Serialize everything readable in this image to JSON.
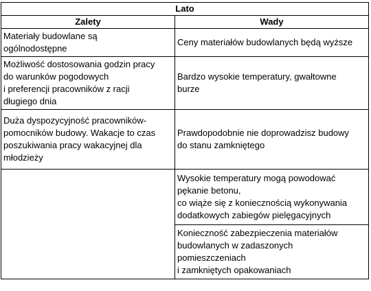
{
  "table": {
    "title": "Lato",
    "headers": {
      "left": "Zalety",
      "right": "Wady"
    },
    "rows": [
      {
        "left": "Materiały budowlane są\nogólnodostępne",
        "right": "Ceny materiałów budowlanych będą wyższe"
      },
      {
        "left": "Możliwość dostosowania godzin pracy\ndo warunków pogodowych\ni preferencji pracowników z racji\ndługiego dnia",
        "right": "Bardzo wysokie temperatury, gwałtowne\nburze"
      },
      {
        "left": "Duża dyspozycyjność pracowników-\npomocników budowy. Wakacje to czas\nposzukiwania pracy wakacyjnej dla\nmłodzieży",
        "right": "Prawdopodobnie nie doprowadzisz budowy\ndo stanu zamkniętego"
      },
      {
        "left": "",
        "right": "Wysokie temperatury mogą powodować\npękanie betonu,\nco wiąże się z koniecznością wykonywania\ndodatkowych zabiegów pielęgacyjnych"
      },
      {
        "left": "",
        "right": "Konieczność zabezpieczenia materiałów\nbudowlanych w zadaszonych\npomieszczeniach\ni zamkniętych opakowaniach"
      }
    ]
  }
}
